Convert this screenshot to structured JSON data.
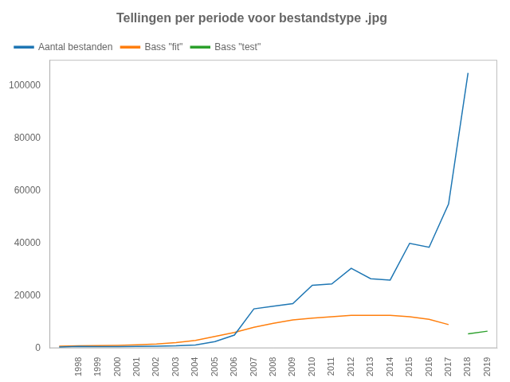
{
  "chart_data": {
    "type": "line",
    "title": "Tellingen per periode voor bestandstype .jpg",
    "x": [
      1997,
      1998,
      1999,
      2000,
      2001,
      2002,
      2003,
      2004,
      2005,
      2006,
      2007,
      2008,
      2009,
      2010,
      2011,
      2012,
      2013,
      2014,
      2015,
      2016,
      2017,
      2018,
      2019
    ],
    "series": [
      {
        "name": "Aantal bestanden",
        "color": "#1f77b4",
        "values": [
          500,
          700,
          600,
          600,
          700,
          800,
          900,
          1200,
          2500,
          5000,
          15000,
          16000,
          17000,
          24000,
          24500,
          30500,
          26500,
          26000,
          40000,
          38500,
          55000,
          105000,
          null
        ]
      },
      {
        "name": "Bass \"fit\"",
        "color": "#ff7f0e",
        "values": [
          800,
          900,
          1000,
          1100,
          1300,
          1600,
          2100,
          3000,
          4500,
          6000,
          8000,
          9500,
          10800,
          11500,
          12000,
          12500,
          12500,
          12500,
          12000,
          11000,
          9000,
          null,
          null
        ]
      },
      {
        "name": "Bass \"test\"",
        "color": "#2ca02c",
        "values": [
          null,
          null,
          null,
          null,
          null,
          null,
          null,
          null,
          null,
          null,
          null,
          null,
          null,
          null,
          null,
          null,
          null,
          null,
          null,
          null,
          null,
          5500,
          6500
        ]
      }
    ],
    "xlim": [
      1996.5,
      2019.5
    ],
    "xticks": [
      1998,
      1999,
      2000,
      2001,
      2002,
      2003,
      2004,
      2005,
      2006,
      2007,
      2008,
      2009,
      2010,
      2011,
      2012,
      2013,
      2014,
      2015,
      2016,
      2017,
      2018,
      2019
    ],
    "ylim": [
      0,
      110000
    ],
    "yticks": [
      0,
      20000,
      40000,
      60000,
      80000,
      100000
    ],
    "grid": false,
    "legend": "upper left"
  }
}
